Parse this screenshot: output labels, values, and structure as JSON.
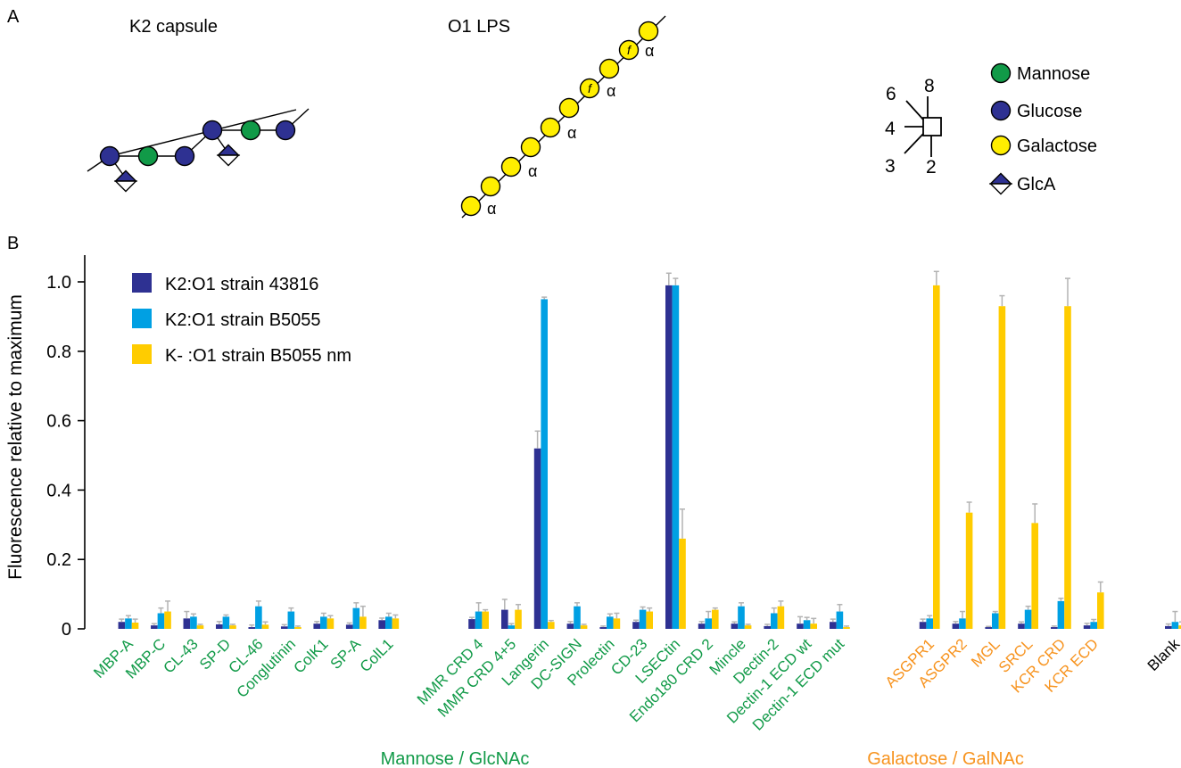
{
  "panels": {
    "a": "A",
    "b": "B"
  },
  "panel_a": {
    "k2_title": "K2 capsule",
    "o1_title": "O1 LPS",
    "alpha": "α",
    "furanose": "f",
    "linkage_numbers": [
      "6",
      "8",
      "4",
      "3",
      "2"
    ],
    "key": [
      {
        "label": "Mannose",
        "color": "#119a48",
        "shape": "circle"
      },
      {
        "label": "Glucose",
        "color": "#2e3192",
        "shape": "circle"
      },
      {
        "label": "Galactose",
        "color": "#ffee00",
        "shape": "circle"
      },
      {
        "label": "GlcA",
        "color": "#2e3192",
        "shape": "diamond"
      }
    ]
  },
  "chart_data": {
    "type": "bar",
    "ylabel": "Fluorescence relative to maximum",
    "ylim": [
      0,
      1.0
    ],
    "yticks": [
      "0",
      "0.2",
      "0.4",
      "0.6",
      "0.8",
      "1.0"
    ],
    "legend": {
      "position": "top-left"
    },
    "categories": [
      "MBP-A",
      "MBP-C",
      "CL-43",
      "SP-D",
      "CL-46",
      "Conglutinin",
      "ColK1",
      "SP-A",
      "ColL1",
      "MMR CRD 4",
      "MMR CRD 4+5",
      "Langerin",
      "DC-SIGN",
      "Prolectin",
      "CD-23",
      "LSECtin",
      "Endo180 CRD 2",
      "Mincle",
      "Dectin-2",
      "Dectin-1 ECD wt",
      "Dectin-1 ECD mut",
      "ASGPR1",
      "ASGPR2",
      "MGL",
      "SRCL",
      "KCR CRD",
      "KCR ECD",
      "Blank"
    ],
    "category_groups": [
      "mannose",
      "mannose",
      "mannose",
      "mannose",
      "mannose",
      "mannose",
      "mannose",
      "mannose",
      "mannose",
      "mannose",
      "mannose",
      "mannose",
      "mannose",
      "mannose",
      "mannose",
      "mannose",
      "mannose",
      "mannose",
      "mannose",
      "mannose",
      "mannose",
      "galactose",
      "galactose",
      "galactose",
      "galactose",
      "galactose",
      "galactose",
      "blank"
    ],
    "groups": [
      {
        "key": "mannose",
        "label": "Mannose / GlcNAc",
        "color": "#119a48"
      },
      {
        "key": "galactose",
        "label": "Galactose / GalNAc",
        "color": "#f7931e"
      },
      {
        "key": "blank",
        "label": "",
        "color": "#000000"
      }
    ],
    "series": [
      {
        "name": "K2:O1 strain 43816",
        "color": "#2e3192",
        "values": [
          0.02,
          0.01,
          0.03,
          0.013,
          0.005,
          0.007,
          0.015,
          0.012,
          0.025,
          0.028,
          0.055,
          0.52,
          0.015,
          0.005,
          0.02,
          0.99,
          0.015,
          0.015,
          0.008,
          0.015,
          0.02,
          0.02,
          0.015,
          0.005,
          0.015,
          0.005,
          0.01,
          0.008
        ],
        "errors": [
          0.008,
          0.005,
          0.02,
          0.008,
          0.006,
          0.005,
          0.006,
          0.005,
          0.006,
          0.005,
          0.03,
          0.05,
          0.006,
          0.003,
          0.005,
          0.035,
          0.006,
          0.005,
          0.005,
          0.02,
          0.008,
          0.008,
          0.006,
          0.002,
          0.005,
          0.003,
          0.006,
          0.006
        ]
      },
      {
        "name": "K2:O1 strain B5055",
        "color": "#00a0e3",
        "values": [
          0.03,
          0.045,
          0.035,
          0.035,
          0.065,
          0.05,
          0.035,
          0.06,
          0.035,
          0.05,
          0.01,
          0.95,
          0.065,
          0.035,
          0.055,
          0.99,
          0.03,
          0.065,
          0.045,
          0.025,
          0.05,
          0.03,
          0.03,
          0.045,
          0.055,
          0.08,
          0.02,
          0.02
        ],
        "errors": [
          0.008,
          0.015,
          0.008,
          0.005,
          0.015,
          0.01,
          0.01,
          0.015,
          0.01,
          0.025,
          0.005,
          0.006,
          0.01,
          0.008,
          0.008,
          0.02,
          0.02,
          0.01,
          0.015,
          0.008,
          0.02,
          0.008,
          0.02,
          0.005,
          0.01,
          0.008,
          0.007,
          0.03
        ]
      },
      {
        "name": "K- :O1 strain B5055 nm",
        "color": "#ffcc00",
        "values": [
          0.018,
          0.05,
          0.01,
          0.01,
          0.012,
          0.005,
          0.03,
          0.035,
          0.03,
          0.05,
          0.055,
          0.02,
          0.01,
          0.03,
          0.05,
          0.26,
          0.055,
          0.01,
          0.065,
          0.015,
          0.005,
          0.99,
          0.335,
          0.93,
          0.305,
          0.93,
          0.105,
          0.01
        ],
        "errors": [
          0.01,
          0.03,
          0.003,
          0.003,
          0.008,
          0.003,
          0.008,
          0.03,
          0.01,
          0.005,
          0.015,
          0.004,
          0.003,
          0.015,
          0.01,
          0.085,
          0.005,
          0.003,
          0.015,
          0.015,
          0.003,
          0.04,
          0.03,
          0.03,
          0.055,
          0.08,
          0.03,
          0.01
        ]
      }
    ]
  }
}
